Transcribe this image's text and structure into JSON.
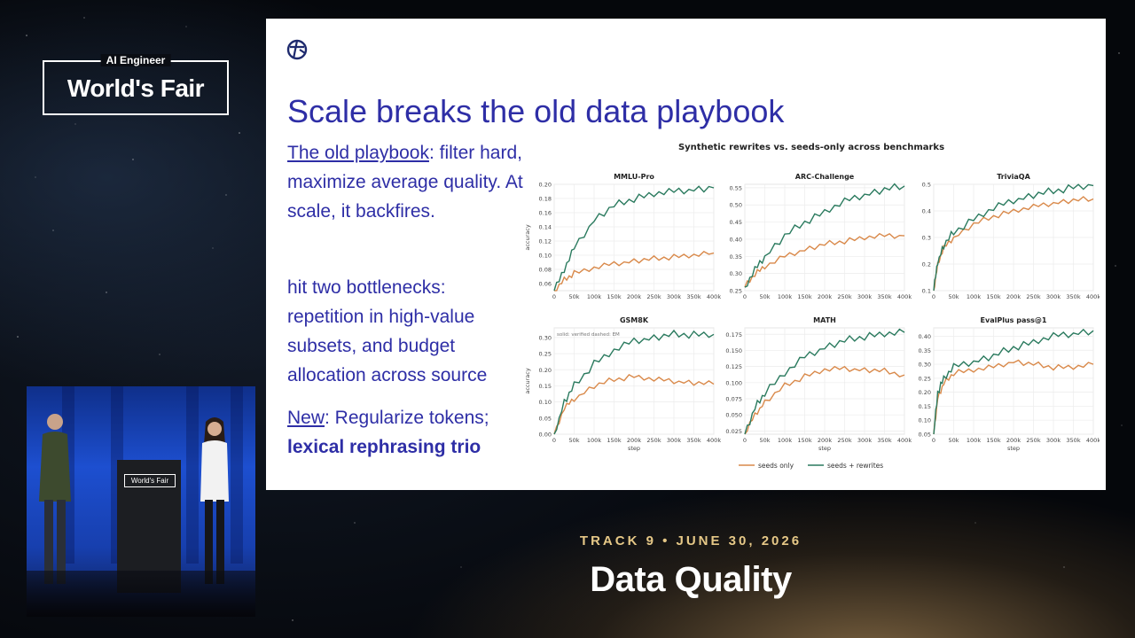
{
  "event": {
    "logo_small": "AI Engineer",
    "logo_big": "World's Fair",
    "track_line": "TRACK 9 • JUNE 30, 2026",
    "session_title": "Data Quality"
  },
  "slide": {
    "title": "Scale breaks the old data playbook",
    "para1_link": "The old playbook",
    "para1_rest": ": filter hard, maximize average quality. At scale, it backfires.",
    "para2": "hit two bottlenecks: repetition in high-value subsets, and budget allocation across source",
    "para3_link": "New",
    "para3_rest": ": Regularize tokens;",
    "para3_bold": "lexical rephrasing trio"
  },
  "stage": {
    "podium_label": "World's Fair"
  },
  "colors": {
    "slide_text": "#2e2ea6",
    "seeds_only": "#d9894a",
    "seeds_rewrites": "#2a7a5e",
    "track_gold": "#e6c887"
  },
  "chart_data": {
    "type": "line",
    "title": "Synthetic rewrites vs. seeds-only across benchmarks",
    "xlabel": "step",
    "ylabel": "accuracy",
    "x_ticks": [
      "0",
      "50k",
      "100k",
      "150k",
      "200k",
      "250k",
      "300k",
      "350k",
      "400k"
    ],
    "legend": [
      "seeds only",
      "seeds + rewrites"
    ],
    "legend_position": "bottom",
    "panels": [
      {
        "name": "MMLU-Pro",
        "ylim": [
          0.05,
          0.2
        ],
        "y_ticks": [
          "0.06",
          "0.08",
          "0.10",
          "0.12",
          "0.14",
          "0.16",
          "0.18",
          "0.20"
        ],
        "x": [
          0,
          25,
          50,
          100,
          150,
          200,
          250,
          300,
          350,
          400
        ],
        "series": [
          {
            "name": "seeds only",
            "values": [
              0.05,
              0.065,
              0.075,
              0.082,
              0.088,
              0.092,
              0.095,
              0.098,
              0.1,
              0.103
            ]
          },
          {
            "name": "seeds + rewrites",
            "values": [
              0.05,
              0.08,
              0.11,
              0.15,
              0.17,
              0.18,
              0.187,
              0.19,
              0.193,
              0.195
            ]
          }
        ]
      },
      {
        "name": "ARC-Challenge",
        "ylim": [
          0.25,
          0.56
        ],
        "y_ticks": [
          "0.25",
          "0.30",
          "0.35",
          "0.40",
          "0.45",
          "0.50",
          "0.55"
        ],
        "x": [
          0,
          25,
          50,
          100,
          150,
          200,
          250,
          300,
          350,
          400
        ],
        "series": [
          {
            "name": "seeds only",
            "values": [
              0.26,
              0.3,
              0.32,
              0.35,
              0.37,
              0.385,
              0.395,
              0.405,
              0.41,
              0.41
            ]
          },
          {
            "name": "seeds + rewrites",
            "values": [
              0.26,
              0.31,
              0.35,
              0.41,
              0.45,
              0.48,
              0.51,
              0.53,
              0.545,
              0.555
            ]
          }
        ]
      },
      {
        "name": "TriviaQA",
        "ylim": [
          0.1,
          0.5
        ],
        "y_ticks": [
          "0.1",
          "0.2",
          "0.3",
          "0.4",
          "0.5"
        ],
        "x": [
          0,
          10,
          25,
          50,
          100,
          150,
          200,
          250,
          300,
          350,
          400
        ],
        "series": [
          {
            "name": "seeds only",
            "values": [
              0.1,
              0.2,
              0.26,
              0.3,
              0.35,
              0.38,
              0.4,
              0.415,
              0.43,
              0.44,
              0.445
            ]
          },
          {
            "name": "seeds + rewrites",
            "values": [
              0.1,
              0.21,
              0.27,
              0.32,
              0.37,
              0.41,
              0.44,
              0.46,
              0.475,
              0.49,
              0.495
            ]
          }
        ]
      },
      {
        "name": "GSM8K",
        "ylim": [
          0.0,
          0.33
        ],
        "y_ticks": [
          "0.00",
          "0.05",
          "0.10",
          "0.15",
          "0.20",
          "0.25",
          "0.30"
        ],
        "annotation": "solid: verified   dashed: EM",
        "x": [
          0,
          25,
          50,
          100,
          150,
          200,
          250,
          300,
          350,
          400
        ],
        "series": [
          {
            "name": "seeds only",
            "values": [
              0.0,
              0.08,
              0.11,
              0.15,
              0.17,
              0.18,
              0.17,
              0.165,
              0.16,
              0.155
            ]
          },
          {
            "name": "seeds + rewrites",
            "values": [
              0.0,
              0.1,
              0.15,
              0.22,
              0.26,
              0.29,
              0.3,
              0.31,
              0.31,
              0.31
            ]
          }
        ]
      },
      {
        "name": "MATH",
        "ylim": [
          0.02,
          0.185
        ],
        "y_ticks": [
          "0.025",
          "0.050",
          "0.075",
          "0.100",
          "0.125",
          "0.150",
          "0.175"
        ],
        "x": [
          0,
          25,
          50,
          100,
          150,
          200,
          250,
          300,
          350,
          400
        ],
        "series": [
          {
            "name": "seeds only",
            "values": [
              0.02,
              0.05,
              0.07,
              0.095,
              0.11,
              0.12,
              0.122,
              0.12,
              0.118,
              0.112
            ]
          },
          {
            "name": "seeds + rewrites",
            "values": [
              0.02,
              0.06,
              0.085,
              0.115,
              0.14,
              0.155,
              0.165,
              0.172,
              0.176,
              0.178
            ]
          }
        ]
      },
      {
        "name": "EvalPlus pass@1",
        "ylim": [
          0.05,
          0.43
        ],
        "y_ticks": [
          "0.05",
          "0.10",
          "0.15",
          "0.20",
          "0.25",
          "0.30",
          "0.35",
          "0.40"
        ],
        "x": [
          0,
          10,
          25,
          50,
          100,
          150,
          200,
          250,
          300,
          350,
          400
        ],
        "series": [
          {
            "name": "seeds only",
            "values": [
              0.05,
              0.18,
              0.23,
              0.27,
              0.28,
              0.29,
              0.31,
              0.3,
              0.29,
              0.29,
              0.3
            ]
          },
          {
            "name": "seeds + rewrites",
            "values": [
              0.05,
              0.2,
              0.25,
              0.29,
              0.31,
              0.33,
              0.36,
              0.38,
              0.4,
              0.41,
              0.42
            ]
          }
        ]
      }
    ]
  }
}
